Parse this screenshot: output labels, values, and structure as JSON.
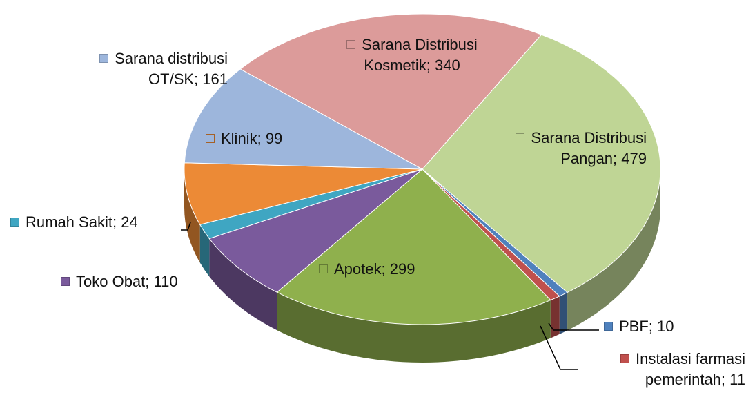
{
  "chart_data": {
    "type": "pie3d",
    "categories": [
      "Sarana Distribusi Pangan",
      "PBF",
      "Instalasi farmasi pemerintah",
      "Apotek",
      "Toko Obat",
      "Rumah Sakit",
      "Klinik",
      "Sarana distribusi OT/SK",
      "Sarana Distribusi Kosmetik"
    ],
    "values": [
      479,
      10,
      11,
      299,
      110,
      24,
      99,
      161,
      340
    ],
    "colors": [
      "#bfd595",
      "#4f81bd",
      "#c0504d",
      "#8fb04d",
      "#7a5a9c",
      "#3fa6c2",
      "#ec8a36",
      "#9db6dc",
      "#dc9b9a"
    ]
  }
}
